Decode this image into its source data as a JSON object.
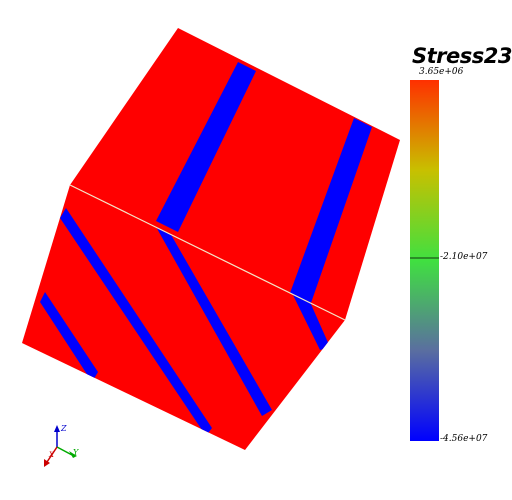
{
  "colorbar": {
    "title": "Stress23",
    "max_label": "3.65e+06",
    "mid_label": "-2.10e+07",
    "min_label": "-4.56e+07",
    "gradient": [
      "#0000ff",
      "#5a6ea0",
      "#40e040",
      "#c8c000",
      "#ff3000"
    ]
  },
  "colors": {
    "face": "#ff0000",
    "stripe": "#0000ff",
    "edge": "#f5e6c8"
  },
  "axes": {
    "labels": [
      "Z",
      "Y",
      "X"
    ],
    "z_color": "#0000cc",
    "y_color": "#00aa00",
    "x_color": "#cc0000"
  }
}
